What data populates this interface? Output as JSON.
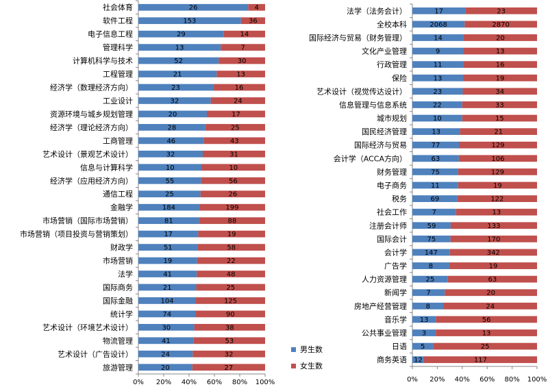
{
  "chart_data": [
    {
      "type": "bar",
      "stacked": "percent",
      "orientation": "horizontal",
      "categories": [
        "社会体育",
        "软件工程",
        "电子信息工程",
        "管理科学",
        "计算机科学与技术",
        "工程管理",
        "经济学（数理经济方向）",
        "工业设计",
        "资源环境与城乡规划管理",
        "经济学（理论经济方向）",
        "工商管理",
        "艺术设计（景观艺术设计）",
        "信息与计算科学",
        "经济学（应用经济方向）",
        "通信工程",
        "金融学",
        "市场营销（国际市场营销）",
        "市场营销（项目投资与营销策划）",
        "财政学",
        "市场营销",
        "法学",
        "国际商务",
        "国际金融",
        "统计学",
        "艺术设计（环境艺术设计）",
        "物流管理",
        "艺术设计（广告设计）",
        "旅游管理"
      ],
      "series": [
        {
          "name": "男生数",
          "values": [
            26,
            153,
            29,
            13,
            52,
            21,
            23,
            32,
            20,
            28,
            46,
            32,
            10,
            55,
            25,
            184,
            81,
            17,
            51,
            19,
            41,
            21,
            104,
            74,
            30,
            41,
            24,
            20
          ]
        },
        {
          "name": "女生数",
          "values": [
            4,
            36,
            14,
            7,
            30,
            13,
            16,
            24,
            17,
            25,
            43,
            31,
            10,
            56,
            26,
            199,
            88,
            19,
            58,
            22,
            48,
            25,
            125,
            90,
            38,
            53,
            32,
            27
          ]
        }
      ],
      "xlim": [
        0,
        100
      ],
      "x_ticks": [
        "0%",
        "20%",
        "40%",
        "60%",
        "80%",
        "100%"
      ]
    },
    {
      "type": "bar",
      "stacked": "percent",
      "orientation": "horizontal",
      "categories": [
        "法学（法务会计）",
        "全校本科",
        "国际经济与贸易（财务管理）",
        "文化产业管理",
        "行政管理",
        "保险",
        "艺术设计（视觉传达设计）",
        "信息管理与信息系统",
        "城市规划",
        "国民经济管理",
        "国际经济与贸易",
        "会计学（ACCA方向）",
        "财务管理",
        "电子商务",
        "税务",
        "社会工作",
        "注册会计师",
        "国际会计",
        "会计学",
        "广告学",
        "人力资源管理",
        "新闻学",
        "房地产经营管理",
        "音乐学",
        "公共事业管理",
        "日语",
        "商务英语"
      ],
      "series": [
        {
          "name": "男生数",
          "values": [
            17,
            2068,
            14,
            9,
            11,
            13,
            23,
            22,
            10,
            13,
            77,
            63,
            75,
            11,
            69,
            7,
            59,
            75,
            147,
            8,
            25,
            7,
            8,
            13,
            3,
            5,
            12
          ]
        },
        {
          "name": "女生数",
          "values": [
            23,
            2870,
            20,
            13,
            16,
            19,
            34,
            33,
            15,
            21,
            129,
            106,
            129,
            19,
            122,
            13,
            133,
            170,
            342,
            19,
            63,
            20,
            24,
            56,
            13,
            25,
            117
          ]
        }
      ],
      "xlim": [
        0,
        100
      ],
      "x_ticks": [
        "0%",
        "20%",
        "40%",
        "60%",
        "80%",
        "100%"
      ]
    }
  ],
  "legend": {
    "placement": "middle-right",
    "items": [
      {
        "name": "男生数",
        "color": "#4F81BD"
      },
      {
        "name": "女生数",
        "color": "#C0504D"
      }
    ]
  },
  "colors": {
    "male": "#4F81BD",
    "female": "#C0504D",
    "axis": "#868686"
  }
}
